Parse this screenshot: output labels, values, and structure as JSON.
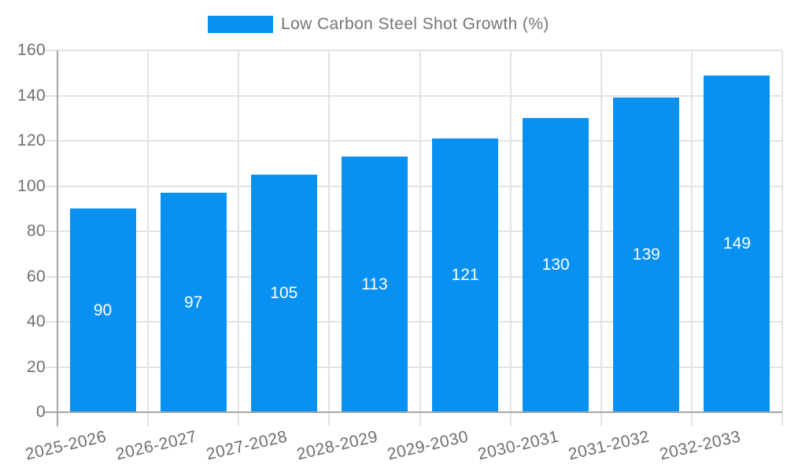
{
  "legend": {
    "label": "Low Carbon Steel Shot Growth (%)"
  },
  "colors": {
    "bar": "#0991F2",
    "axis": "#a6a6a6",
    "grid": "#e3e3e3",
    "tick_text": "#6e6e6e",
    "legend_text": "#757575",
    "value_text": "#ffffff",
    "background": "#ffffff"
  },
  "chart_data": {
    "type": "bar",
    "title": "Low Carbon Steel Shot Growth (%)",
    "categories": [
      "2025-2026",
      "2026-2027",
      "2027-2028",
      "2028-2029",
      "2029-2030",
      "2030-2031",
      "2031-2032",
      "2032-2033"
    ],
    "values": [
      90,
      97,
      105,
      113,
      121,
      130,
      139,
      149
    ],
    "bar_value_labels": [
      "90",
      "97",
      "105",
      "113",
      "121",
      "130",
      "139",
      "149"
    ],
    "xlabel": "",
    "ylabel": "",
    "ylim": [
      0,
      160
    ],
    "ytick_step": 20,
    "ytick_labels": [
      "0",
      "20",
      "40",
      "60",
      "80",
      "100",
      "120",
      "140",
      "160"
    ],
    "grid": true,
    "legend_position": "top-center",
    "value_label_position": "inside-center",
    "x_tick_label_rotation_deg": -13
  }
}
